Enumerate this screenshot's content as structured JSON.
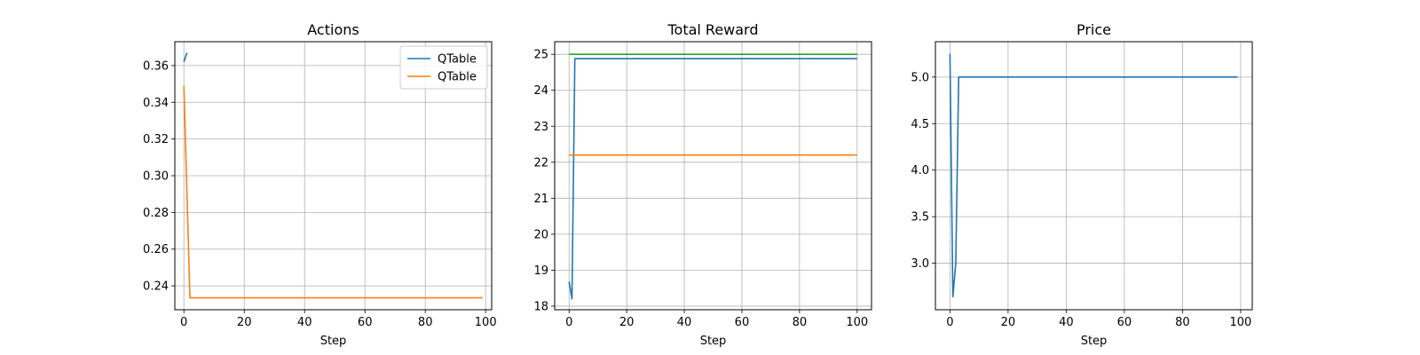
{
  "chart_data": [
    {
      "type": "line",
      "title": "Actions",
      "xlabel": "Step",
      "ylabel": "",
      "xlim": [
        -3,
        102
      ],
      "ylim": [
        0.227,
        0.373
      ],
      "xticks": [
        0,
        20,
        40,
        60,
        80,
        100
      ],
      "yticks": [
        0.24,
        0.26,
        0.28,
        0.3,
        0.32,
        0.34,
        0.36
      ],
      "ytick_decimals": 2,
      "grid": true,
      "legend": "top-right",
      "series": [
        {
          "name": "QTable",
          "color": "#1f77b4",
          "points": [
            [
              0,
              0.362
            ],
            [
              1,
              0.367
            ]
          ]
        },
        {
          "name": "QTable",
          "color": "#ff7f0e",
          "points": [
            [
              0,
              0.349
            ],
            [
              2,
              0.2335
            ],
            [
              99,
              0.2335
            ]
          ]
        }
      ]
    },
    {
      "type": "line",
      "title": "Total Reward",
      "xlabel": "Step",
      "ylabel": "",
      "xlim": [
        -5,
        105
      ],
      "ylim": [
        17.9,
        25.35
      ],
      "xticks": [
        0,
        20,
        40,
        60,
        80,
        100
      ],
      "yticks": [
        18,
        19,
        20,
        21,
        22,
        23,
        24,
        25
      ],
      "ytick_decimals": 0,
      "grid": true,
      "legend": "",
      "series": [
        {
          "color": "#1f77b4",
          "points": [
            [
              0,
              18.68
            ],
            [
              1,
              18.2
            ],
            [
              2,
              24.88
            ],
            [
              100,
              24.88
            ]
          ]
        },
        {
          "color": "#2ca02c",
          "points": [
            [
              0,
              25.0
            ],
            [
              100,
              25.0
            ]
          ]
        },
        {
          "color": "#ff7f0e",
          "points": [
            [
              0,
              22.2
            ],
            [
              100,
              22.2
            ]
          ]
        }
      ]
    },
    {
      "type": "line",
      "title": "Price",
      "xlabel": "Step",
      "ylabel": "",
      "xlim": [
        -5,
        104
      ],
      "ylim": [
        2.5,
        5.38
      ],
      "xticks": [
        0,
        20,
        40,
        60,
        80,
        100
      ],
      "yticks": [
        3.0,
        3.5,
        4.0,
        4.5,
        5.0
      ],
      "ytick_decimals": 1,
      "grid": true,
      "legend": "",
      "series": [
        {
          "color": "#1f77b4",
          "points": [
            [
              0,
              5.25
            ],
            [
              1,
              2.64
            ],
            [
              2,
              3.0
            ],
            [
              3,
              5.0
            ],
            [
              99,
              5.0
            ]
          ]
        }
      ]
    }
  ]
}
